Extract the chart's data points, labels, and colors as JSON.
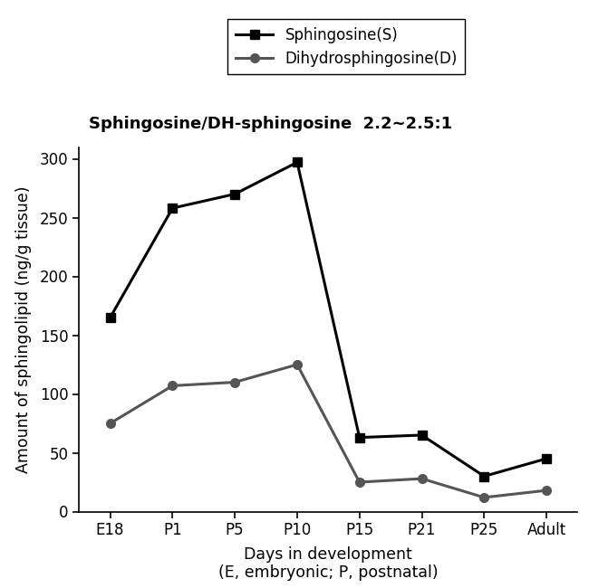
{
  "x_labels": [
    "E18",
    "P1",
    "P5",
    "P10",
    "P15",
    "P21",
    "P25",
    "Adult"
  ],
  "sphingosine_y": [
    165,
    258,
    270,
    297,
    63,
    65,
    30,
    45
  ],
  "dihydro_y": [
    75,
    107,
    110,
    125,
    25,
    28,
    12,
    18
  ],
  "sphingosine_label": "Sphingosine(S)",
  "dihydro_label": "Dihydrosphingosine(D)",
  "title": "Sphingosine/DH-sphingosine  2.2~2.5:1",
  "ylabel": "Amount of sphingolipid (ng/g tissue)",
  "xlabel": "Days in development",
  "xlabel2": "(E, embryonic; P, postnatal)",
  "ylim": [
    0,
    310
  ],
  "yticks": [
    0,
    50,
    100,
    150,
    200,
    250,
    300
  ],
  "s_color": "#000000",
  "d_color": "#555555",
  "background_color": "#ffffff"
}
